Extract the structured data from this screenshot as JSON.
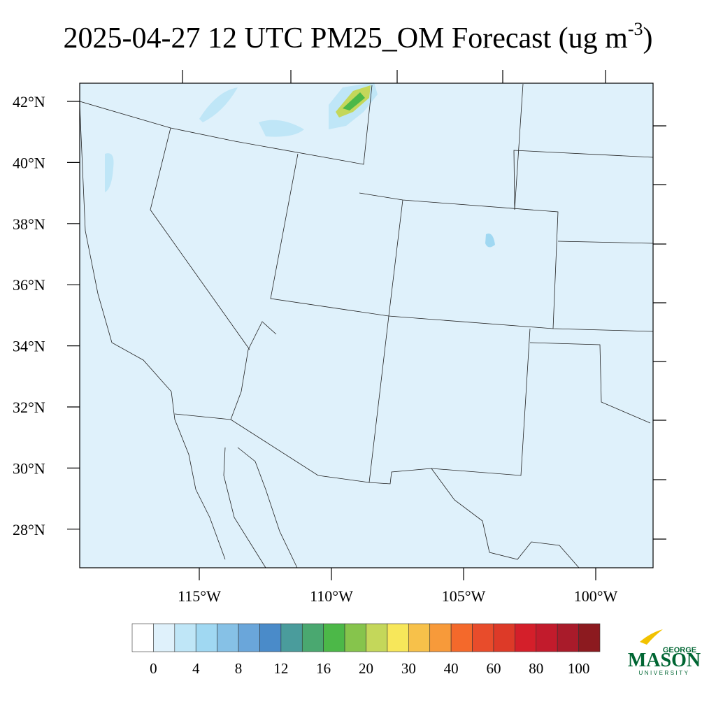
{
  "header": {
    "title": "2025-04-27 12 UTC PM25_OM Forecast (ug m",
    "title_superscript": "-3",
    "title_close": ")"
  },
  "map": {
    "lat_labels": [
      "42°N",
      "40°N",
      "38°N",
      "36°N",
      "34°N",
      "32°N",
      "30°N",
      "28°N"
    ],
    "lon_labels": [
      "115°W",
      "110°W",
      "105°W",
      "100°W"
    ]
  },
  "colorbar": {
    "colors": [
      "#ffffff",
      "#dff1fb",
      "#bfe6f7",
      "#a0d8f2",
      "#86c1e6",
      "#6aa6da",
      "#4a8bc9",
      "#4a9c9c",
      "#4aa870",
      "#4cb848",
      "#86c44c",
      "#c4d75a",
      "#f7e75a",
      "#f7c14a",
      "#f79a3a",
      "#f4692b",
      "#e84c2b",
      "#dd3a28",
      "#d41f2a",
      "#c21b2c",
      "#a91b2a",
      "#8c1a1f"
    ],
    "labels": [
      0,
      4,
      8,
      12,
      16,
      20,
      30,
      40,
      60,
      80,
      100
    ]
  },
  "logo": {
    "top": "GEORGE",
    "main": "MASON",
    "bottom": "UNIVERSITY"
  }
}
